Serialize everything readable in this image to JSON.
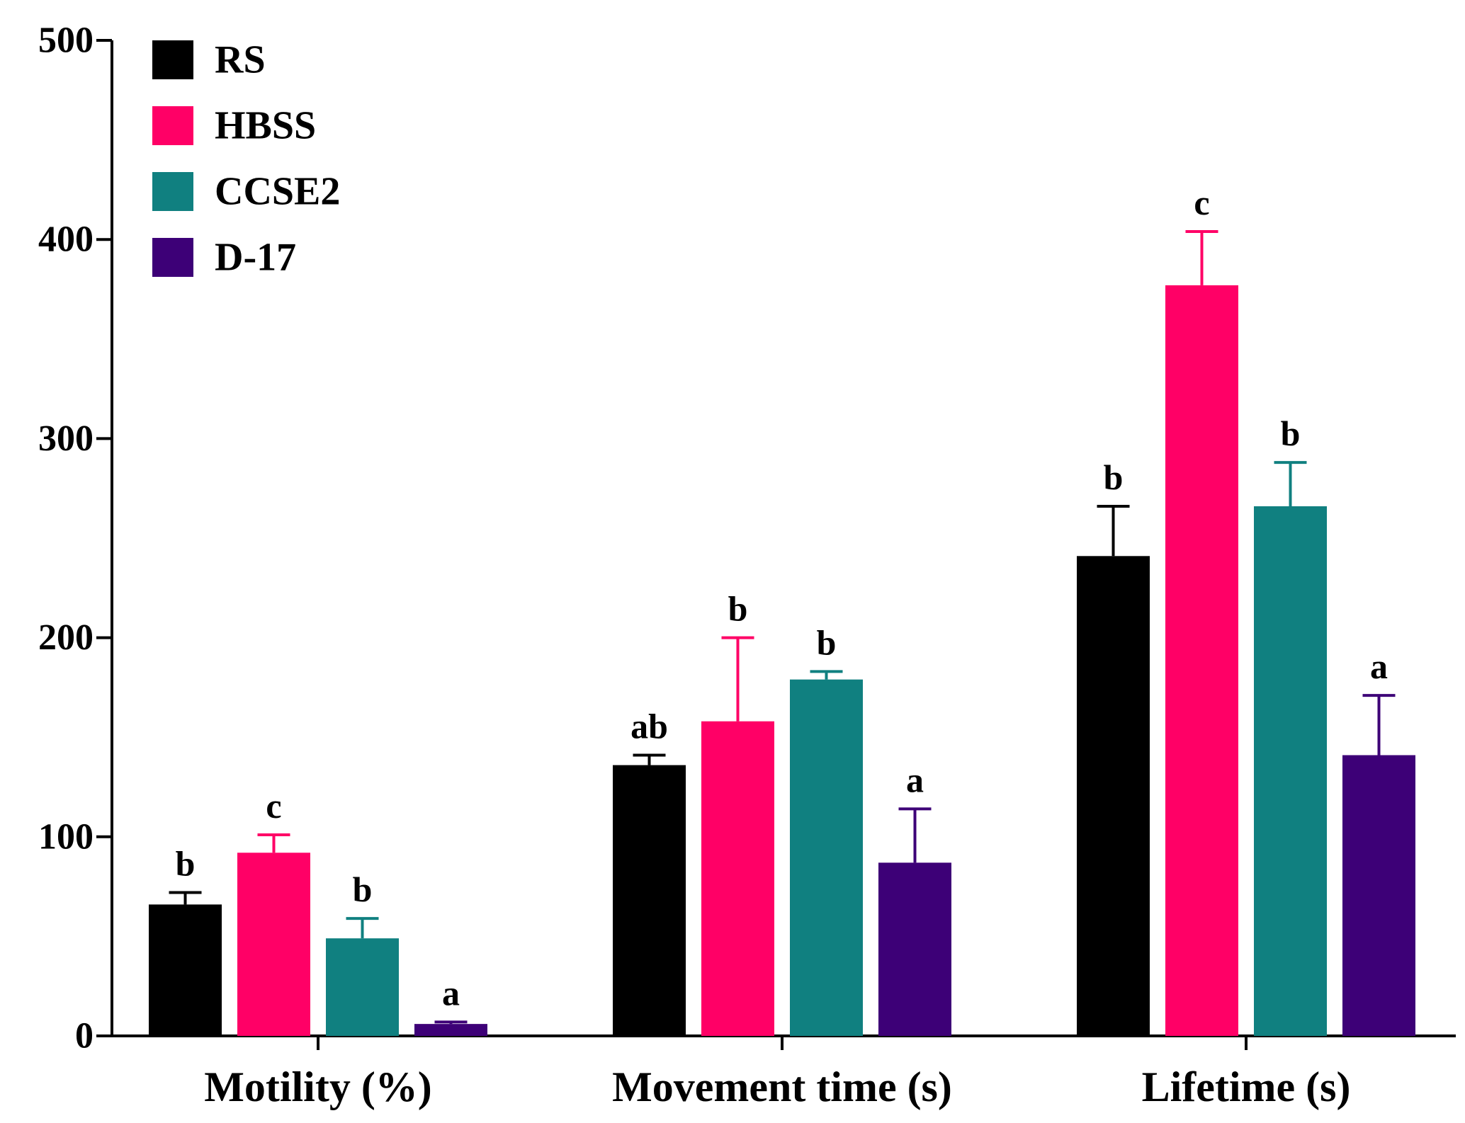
{
  "chart_data": {
    "type": "bar",
    "title": "",
    "xlabel": "",
    "ylabel": "",
    "ylim": [
      0,
      500
    ],
    "yticks": [
      0,
      100,
      200,
      300,
      400,
      500
    ],
    "categories": [
      "Motility (%)",
      "Movement time (s)",
      "Lifetime (s)"
    ],
    "legend_position": "top-left",
    "series": [
      {
        "name": "RS",
        "color": "#000000",
        "values": [
          66,
          136,
          241
        ],
        "errors": [
          6,
          5,
          25
        ],
        "letters": [
          "b",
          "ab",
          "b"
        ]
      },
      {
        "name": "HBSS",
        "color": "#FF0066",
        "values": [
          92,
          158,
          377
        ],
        "errors": [
          9,
          42,
          27
        ],
        "letters": [
          "c",
          "b",
          "c"
        ]
      },
      {
        "name": "CCSE2",
        "color": "#108080",
        "values": [
          49,
          179,
          266
        ],
        "errors": [
          10,
          4,
          22
        ],
        "letters": [
          "b",
          "b",
          "b"
        ]
      },
      {
        "name": "D-17",
        "color": "#3D0077",
        "values": [
          6,
          87,
          141
        ],
        "errors": [
          1,
          27,
          30
        ],
        "letters": [
          "a",
          "a",
          "a"
        ]
      }
    ]
  }
}
